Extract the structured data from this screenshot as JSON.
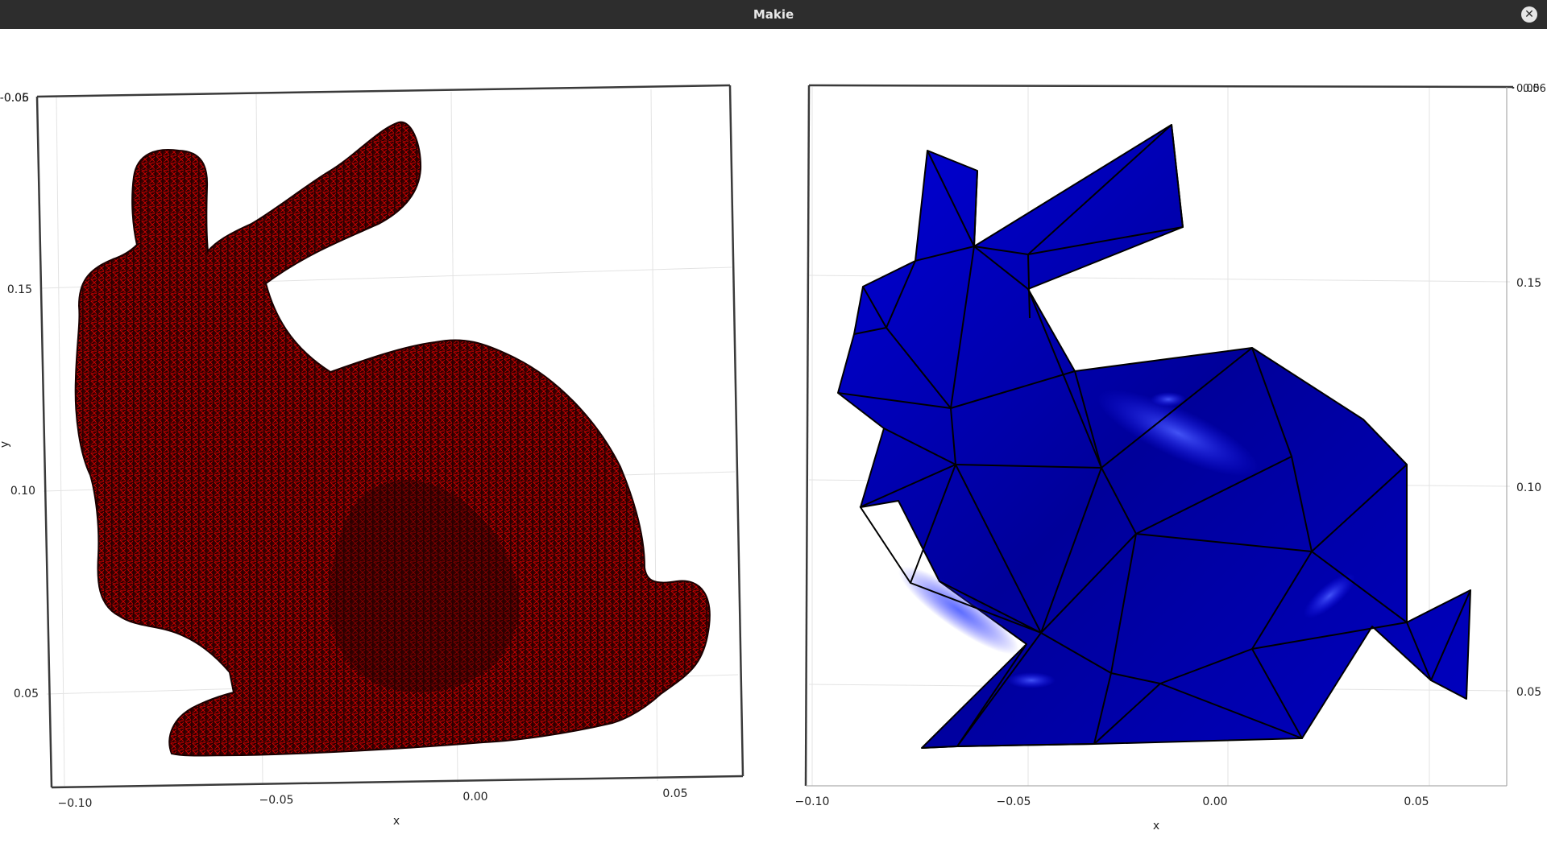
{
  "window": {
    "title": "Makie",
    "close_glyph": "✕"
  },
  "colors": {
    "left_mesh": "#b00000",
    "left_wire": "#1a0000",
    "right_mesh": "#0000c8",
    "right_wire": "#000000",
    "grid": "#e3e3e3",
    "frame": "#3a3a3a"
  },
  "left_axis": {
    "x_ticks": [
      "−0.10",
      "−0.05",
      "0.00",
      "0.05"
    ],
    "y_ticks": [
      "0.15",
      "0.10",
      "0.05"
    ],
    "xlabel": "x",
    "ylabel": "y",
    "corner_tick": "-0.06",
    "corner_tick_overlap": "0.05"
  },
  "right_axis": {
    "x_ticks": [
      "−0.10",
      "−0.05",
      "0.00",
      "0.05"
    ],
    "y_ticks": [
      "0.15",
      "0.10",
      "0.05"
    ],
    "xlabel": "x",
    "corner_tick": "0.05",
    "corner_tick_overlap": "0.06"
  }
}
